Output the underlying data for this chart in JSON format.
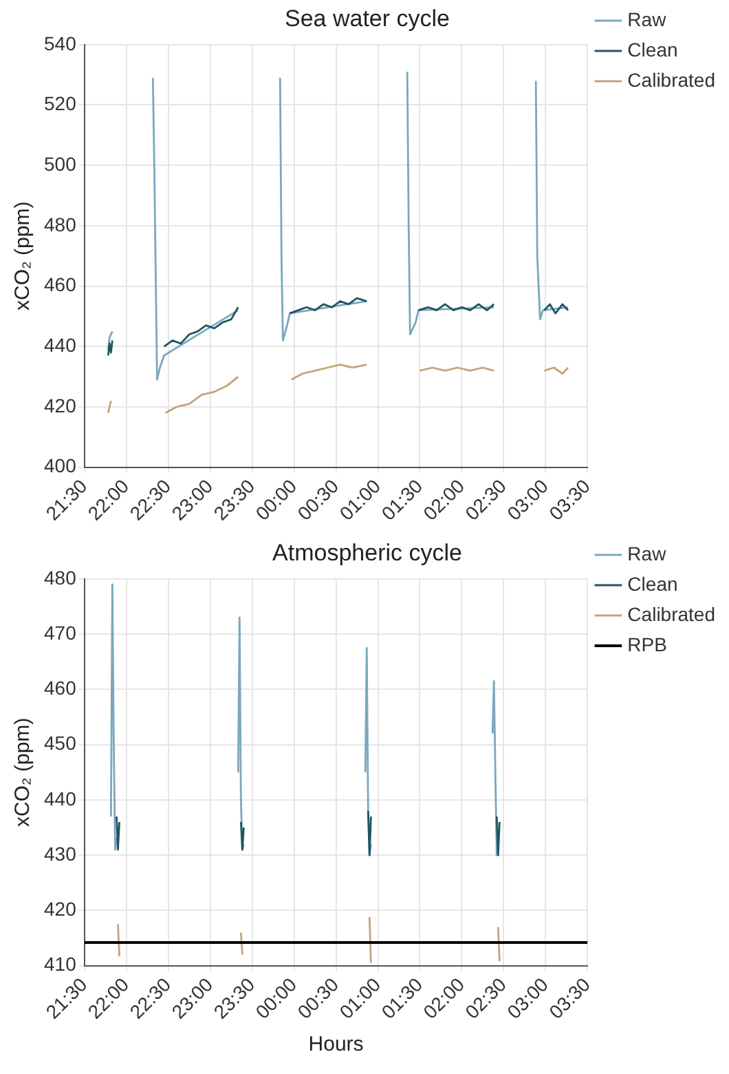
{
  "chart_data": [
    {
      "type": "line",
      "title": "Sea water cycle",
      "ylabel": "xCO₂ (ppm)",
      "legend": "top right",
      "grid": true,
      "marker": "none",
      "line_style": "solid",
      "xlim": [
        "2000-01-01T21:30",
        "2000-01-02T03:30"
      ],
      "xticks": [
        {
          "value": "2000-01-01T21:30",
          "label": "21:30"
        },
        {
          "value": "2000-01-01T22:00",
          "label": "22:00"
        },
        {
          "value": "2000-01-01T22:30",
          "label": "22:30"
        },
        {
          "value": "2000-01-01T23:00",
          "label": "23:00"
        },
        {
          "value": "2000-01-01T23:30",
          "label": "23:30"
        },
        {
          "value": "2000-01-02T00:00",
          "label": "00:00"
        },
        {
          "value": "2000-01-02T00:30",
          "label": "00:30"
        },
        {
          "value": "2000-01-02T01:00",
          "label": "01:00"
        },
        {
          "value": "2000-01-02T01:30",
          "label": "01:30"
        },
        {
          "value": "2000-01-02T02:00",
          "label": "02:00"
        },
        {
          "value": "2000-01-02T02:30",
          "label": "02:30"
        },
        {
          "value": "2000-01-02T03:00",
          "label": "03:00"
        },
        {
          "value": "2000-01-02T03:30",
          "label": "03:30"
        }
      ],
      "ylim": [
        400,
        540
      ],
      "yticks": [
        400,
        420,
        440,
        460,
        480,
        500,
        520,
        540
      ],
      "series": [
        {
          "name": "Raw",
          "color": "#7ba7bf",
          "x": [
            "2000-01-01T21:47",
            "2000-01-01T21:48",
            "2000-01-01T21:50",
            "2000-01-01T21:54",
            "2000-01-01T22:19",
            "2000-01-01T22:20",
            "2000-01-01T22:22",
            "2000-01-01T22:24",
            "2000-01-01T22:27",
            "2000-01-01T22:48",
            "2000-01-01T23:20",
            "2000-01-01T23:30",
            "2000-01-01T23:50",
            "2000-01-01T23:51",
            "2000-01-01T23:52",
            "2000-01-01T23:55",
            "2000-01-01T23:57",
            "2000-01-02T00:52",
            "2000-01-02T01:06",
            "2000-01-02T01:21",
            "2000-01-02T01:22",
            "2000-01-02T01:23",
            "2000-01-02T01:27",
            "2000-01-02T01:29",
            "2000-01-02T02:23",
            "2000-01-02T02:36",
            "2000-01-02T02:53",
            "2000-01-02T02:54",
            "2000-01-02T02:56",
            "2000-01-02T02:58",
            "2000-01-02T03:16"
          ],
          "values": [
            439,
            443,
            445,
            null,
            529,
            500,
            429,
            433,
            437,
            443,
            452,
            null,
            529,
            470,
            442,
            447,
            451,
            455,
            null,
            531,
            480,
            444,
            448,
            452,
            453,
            null,
            528,
            470,
            449,
            452,
            453
          ]
        },
        {
          "name": "Clean",
          "color": "#1f5561",
          "x": [
            "2000-01-01T21:47",
            "2000-01-01T21:48",
            "2000-01-01T21:49",
            "2000-01-01T21:50",
            "2000-01-01T22:00",
            "2000-01-01T22:27",
            "2000-01-01T22:33",
            "2000-01-01T22:39",
            "2000-01-01T22:45",
            "2000-01-01T22:51",
            "2000-01-01T22:57",
            "2000-01-01T23:03",
            "2000-01-01T23:09",
            "2000-01-01T23:15",
            "2000-01-01T23:20",
            "2000-01-01T23:36",
            "2000-01-01T23:57",
            "2000-01-02T00:03",
            "2000-01-02T00:09",
            "2000-01-02T00:15",
            "2000-01-02T00:21",
            "2000-01-02T00:27",
            "2000-01-02T00:33",
            "2000-01-02T00:39",
            "2000-01-02T00:45",
            "2000-01-02T00:52",
            "2000-01-02T01:06",
            "2000-01-02T01:29",
            "2000-01-02T01:36",
            "2000-01-02T01:42",
            "2000-01-02T01:48",
            "2000-01-02T01:54",
            "2000-01-02T02:00",
            "2000-01-02T02:06",
            "2000-01-02T02:12",
            "2000-01-02T02:18",
            "2000-01-02T02:23",
            "2000-01-02T02:36",
            "2000-01-02T02:59",
            "2000-01-02T03:03",
            "2000-01-02T03:07",
            "2000-01-02T03:12",
            "2000-01-02T03:16"
          ],
          "values": [
            437,
            441,
            438,
            442,
            null,
            440,
            442,
            441,
            444,
            445,
            447,
            446,
            448,
            449,
            453,
            null,
            451,
            452,
            453,
            452,
            454,
            453,
            455,
            454,
            456,
            455,
            null,
            452,
            453,
            452,
            454,
            452,
            453,
            452,
            454,
            452,
            454,
            null,
            452,
            454,
            451,
            454,
            452
          ]
        },
        {
          "name": "Calibrated",
          "color": "#c4a37a",
          "x": [
            "2000-01-01T21:47",
            "2000-01-01T21:49",
            "2000-01-01T22:00",
            "2000-01-01T22:28",
            "2000-01-01T22:36",
            "2000-01-01T22:45",
            "2000-01-01T22:54",
            "2000-01-01T23:03",
            "2000-01-01T23:12",
            "2000-01-01T23:20",
            "2000-01-01T23:36",
            "2000-01-01T23:58",
            "2000-01-02T00:06",
            "2000-01-02T00:15",
            "2000-01-02T00:24",
            "2000-01-02T00:33",
            "2000-01-02T00:42",
            "2000-01-02T00:52",
            "2000-01-02T01:06",
            "2000-01-02T01:30",
            "2000-01-02T01:39",
            "2000-01-02T01:48",
            "2000-01-02T01:57",
            "2000-01-02T02:06",
            "2000-01-02T02:15",
            "2000-01-02T02:23",
            "2000-01-02T02:36",
            "2000-01-02T02:59",
            "2000-01-02T03:06",
            "2000-01-02T03:12",
            "2000-01-02T03:16"
          ],
          "values": [
            418,
            422,
            null,
            418,
            420,
            421,
            424,
            425,
            427,
            430,
            null,
            429,
            431,
            432,
            433,
            434,
            433,
            434,
            null,
            432,
            433,
            432,
            433,
            432,
            433,
            432,
            null,
            432,
            433,
            431,
            433
          ]
        }
      ]
    },
    {
      "type": "line",
      "title": "Atmospheric cycle",
      "xlabel": "Hours",
      "ylabel": "xCO₂ (ppm)",
      "legend": "top right",
      "grid": true,
      "marker": "none",
      "line_style": "solid",
      "xlim": [
        "2000-01-01T21:30",
        "2000-01-02T03:30"
      ],
      "xticks": [
        {
          "value": "2000-01-01T21:30",
          "label": "21:30"
        },
        {
          "value": "2000-01-01T22:00",
          "label": "22:00"
        },
        {
          "value": "2000-01-01T22:30",
          "label": "22:30"
        },
        {
          "value": "2000-01-01T23:00",
          "label": "23:00"
        },
        {
          "value": "2000-01-01T23:30",
          "label": "23:30"
        },
        {
          "value": "2000-01-02T00:00",
          "label": "00:00"
        },
        {
          "value": "2000-01-02T00:30",
          "label": "00:30"
        },
        {
          "value": "2000-01-02T01:00",
          "label": "01:00"
        },
        {
          "value": "2000-01-02T01:30",
          "label": "01:30"
        },
        {
          "value": "2000-01-02T02:00",
          "label": "02:00"
        },
        {
          "value": "2000-01-02T02:30",
          "label": "02:30"
        },
        {
          "value": "2000-01-02T03:00",
          "label": "03:00"
        },
        {
          "value": "2000-01-02T03:30",
          "label": "03:30"
        }
      ],
      "ylim": [
        410,
        480
      ],
      "yticks": [
        410,
        420,
        430,
        440,
        450,
        460,
        470,
        480
      ],
      "series": [
        {
          "name": "Raw",
          "color": "#7ba7bf",
          "x": [
            "2000-01-01T21:49",
            "2000-01-01T21:50",
            "2000-01-01T21:51",
            "2000-01-01T21:52",
            "2000-01-01T21:53",
            "2000-01-01T21:54",
            "2000-01-01T22:10",
            "2000-01-01T23:20",
            "2000-01-01T23:21",
            "2000-01-01T23:22",
            "2000-01-01T23:23",
            "2000-01-01T23:24",
            "2000-01-01T23:40",
            "2000-01-02T00:51",
            "2000-01-02T00:52",
            "2000-01-02T00:53",
            "2000-01-02T00:54",
            "2000-01-02T00:55",
            "2000-01-02T01:30",
            "2000-01-02T02:22",
            "2000-01-02T02:23",
            "2000-01-02T02:24",
            "2000-01-02T02:25",
            "2000-01-02T02:26"
          ],
          "values": [
            437,
            479,
            450,
            431,
            433,
            432,
            null,
            445,
            473,
            440,
            431,
            432,
            null,
            445,
            467.5,
            438,
            430,
            432,
            null,
            452,
            461.5,
            445,
            430,
            431
          ]
        },
        {
          "name": "Clean",
          "color": "#1f5561",
          "x": [
            "2000-01-01T21:53",
            "2000-01-01T21:54",
            "2000-01-01T21:55",
            "2000-01-01T22:10",
            "2000-01-01T23:22",
            "2000-01-01T23:23",
            "2000-01-01T23:24",
            "2000-01-01T23:40",
            "2000-01-02T00:53",
            "2000-01-02T00:54",
            "2000-01-02T00:55",
            "2000-01-02T01:30",
            "2000-01-02T02:25",
            "2000-01-02T02:26",
            "2000-01-02T02:27"
          ],
          "values": [
            437,
            431,
            436,
            null,
            436,
            431,
            435,
            null,
            438,
            430,
            437,
            null,
            437,
            430,
            436
          ]
        },
        {
          "name": "Calibrated",
          "color": "#c4a37a",
          "x": [
            "2000-01-01T21:54",
            "2000-01-01T21:55",
            "2000-01-01T22:10",
            "2000-01-01T23:22",
            "2000-01-01T23:23",
            "2000-01-01T23:40",
            "2000-01-02T00:54",
            "2000-01-02T00:55",
            "2000-01-02T01:30",
            "2000-01-02T02:26",
            "2000-01-02T02:27"
          ],
          "values": [
            417.5,
            411.7,
            null,
            416,
            412,
            null,
            418.8,
            410.5,
            null,
            417,
            410.8
          ]
        },
        {
          "name": "RPB",
          "color": "#000000",
          "x": [
            "2000-01-01T21:30",
            "2000-01-02T03:30"
          ],
          "values": [
            414.2,
            414.2
          ]
        }
      ]
    }
  ]
}
